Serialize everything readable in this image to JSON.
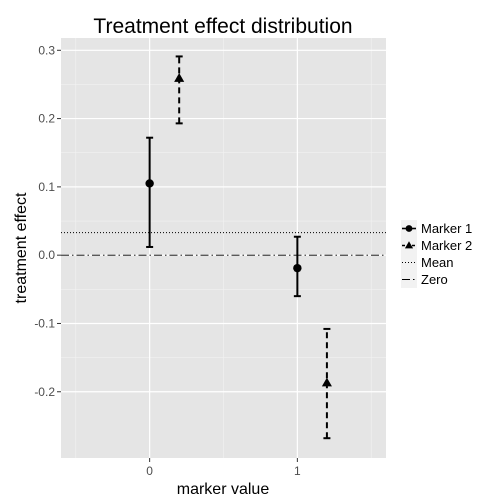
{
  "chart_data": {
    "type": "errorbar",
    "title": "Treatment effect distribution",
    "xlabel": "marker value",
    "ylabel": "treatment effect",
    "x_ticks": [
      0,
      1
    ],
    "x_tick_labels": [
      "0",
      "1"
    ],
    "xlim": [
      -0.6,
      1.6
    ],
    "y_ticks": [
      -0.2,
      -0.1,
      0.0,
      0.1,
      0.2,
      0.3
    ],
    "y_tick_labels": [
      "-0.2",
      "-0.1",
      "0.0",
      "0.1",
      "0.2",
      "0.3"
    ],
    "ylim": [
      -0.297,
      0.318
    ],
    "grid": true,
    "legend_position": "right",
    "series": [
      {
        "name": "Marker 1",
        "marker": "circle",
        "linestyle": "solid",
        "points": [
          {
            "x": 0.0,
            "y": 0.105,
            "ymin": 0.012,
            "ymax": 0.172
          },
          {
            "x": 1.0,
            "y": -0.019,
            "ymin": -0.06,
            "ymax": 0.027
          }
        ]
      },
      {
        "name": "Marker 2",
        "marker": "triangle",
        "linestyle": "dashed",
        "points": [
          {
            "x": 0.2,
            "y": 0.259,
            "ymin": 0.193,
            "ymax": 0.291
          },
          {
            "x": 1.2,
            "y": -0.187,
            "ymin": -0.268,
            "ymax": -0.108
          }
        ]
      }
    ],
    "reference_lines": [
      {
        "name": "Mean",
        "y": 0.033,
        "linestyle": "dotted"
      },
      {
        "name": "Zero",
        "y": 0.0,
        "linestyle": "dashdot"
      }
    ],
    "colors": {
      "panel": "#e5e5e5",
      "grid_major": "#ffffff",
      "grid_minor": "#f2f2f2",
      "ink": "#000000",
      "tick_text": "#4d4d4d"
    }
  }
}
